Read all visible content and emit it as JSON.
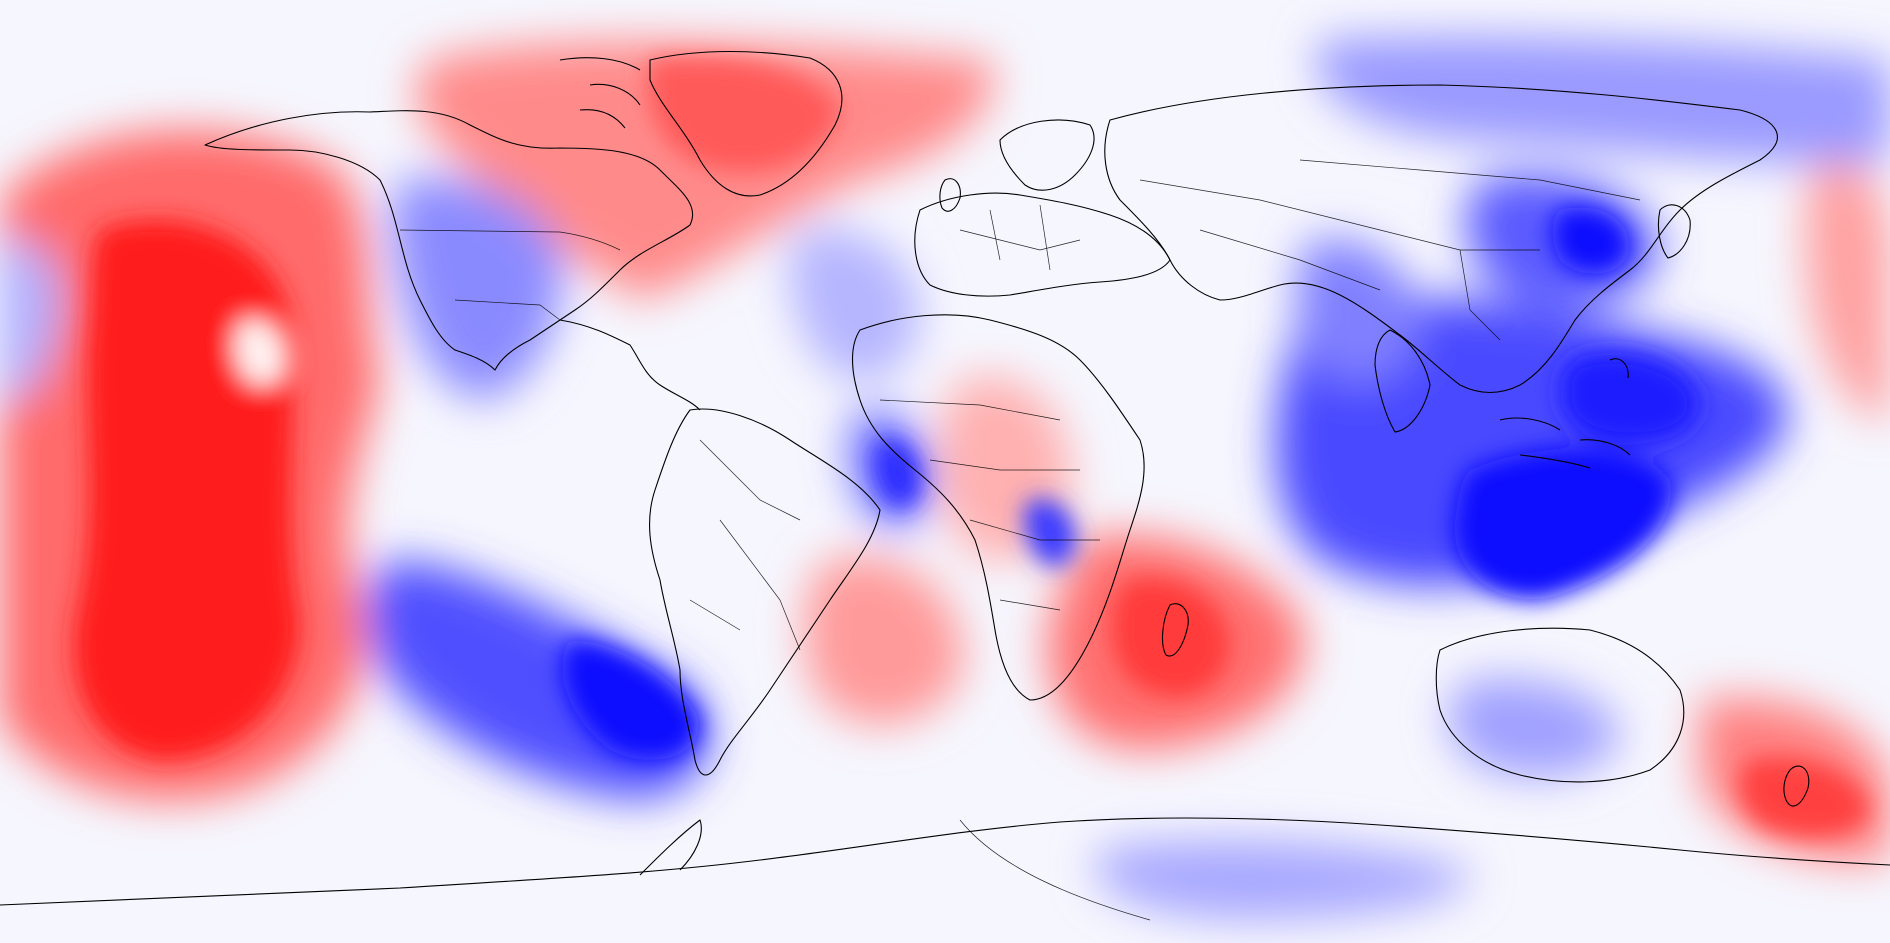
{
  "map": {
    "kind": "global-anomaly-field",
    "projection": "equirectangular",
    "colormap": "bwr",
    "colors": {
      "strong_positive": "#ff0000",
      "positive": "#ff7676",
      "neutral": "#f6f6fe",
      "negative": "#7d7dff",
      "strong_negative": "#0000ff",
      "coastline": "#000000"
    },
    "features": [
      "coastlines",
      "country-borders"
    ]
  }
}
